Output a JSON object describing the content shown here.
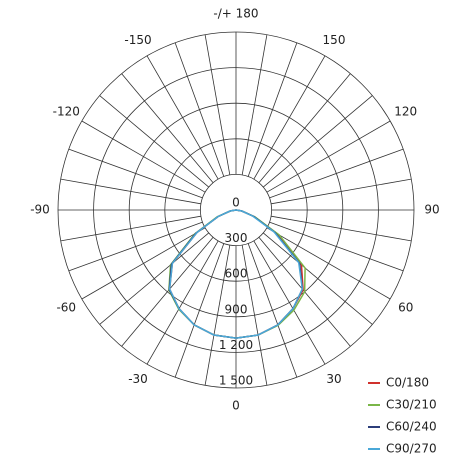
{
  "chart_data": {
    "type": "polar",
    "x": [
      -90,
      -80,
      -70,
      -60,
      -50,
      -40,
      -30,
      -20,
      -10,
      0,
      10,
      20,
      30,
      40,
      50,
      60,
      70,
      80,
      90
    ],
    "series": [
      {
        "name": "C0/180",
        "color": "#d0312d",
        "values": [
          0,
          50,
          160,
          380,
          700,
          870,
          960,
          1030,
          1070,
          1080,
          1070,
          1030,
          960,
          880,
          720,
          390,
          160,
          50,
          0
        ]
      },
      {
        "name": "C30/210",
        "color": "#7ab648",
        "values": [
          0,
          50,
          170,
          400,
          720,
          880,
          965,
          1030,
          1070,
          1080,
          1070,
          1035,
          975,
          900,
          760,
          420,
          170,
          50,
          0
        ]
      },
      {
        "name": "C60/240",
        "color": "#2c3e7a",
        "values": [
          0,
          50,
          160,
          390,
          710,
          875,
          960,
          1030,
          1070,
          1080,
          1070,
          1030,
          960,
          870,
          700,
          380,
          160,
          50,
          0
        ]
      },
      {
        "name": "C90/270",
        "color": "#4aa8d8",
        "values": [
          0,
          50,
          160,
          380,
          700,
          870,
          960,
          1030,
          1070,
          1080,
          1070,
          1030,
          960,
          870,
          690,
          370,
          150,
          50,
          0
        ]
      }
    ],
    "rlim": [
      0,
      1500
    ],
    "rticks": [
      0,
      300,
      600,
      900,
      {
        "value": 1200,
        "label": "1 200"
      },
      {
        "value": 1500,
        "label": "1 500"
      }
    ],
    "angle_ticks": [
      0,
      30,
      60,
      90,
      120,
      150,
      {
        "value": 180,
        "label": "-/+ 180"
      },
      -150,
      -120,
      -90,
      -60,
      -30
    ],
    "legend": "lower right"
  }
}
